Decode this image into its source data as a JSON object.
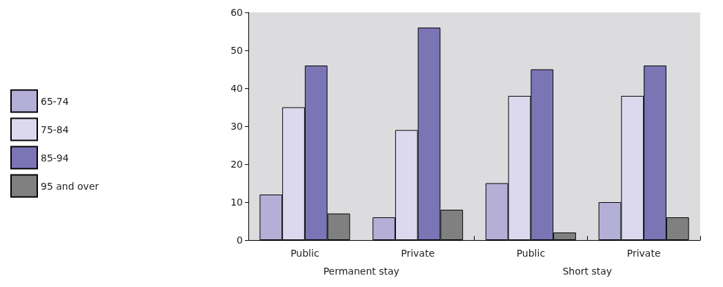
{
  "chart_data": {
    "type": "bar",
    "categories": [
      "Public",
      "Private",
      "Public",
      "Private"
    ],
    "series": [
      {
        "name": "65-74",
        "color": "#b3afd7",
        "values": [
          12,
          6,
          15,
          10
        ]
      },
      {
        "name": "75-84",
        "color": "#dcd9ee",
        "values": [
          35,
          29,
          38,
          38
        ]
      },
      {
        "name": "85-94",
        "color": "#7b74b5",
        "values": [
          46,
          56,
          45,
          46
        ]
      },
      {
        "name": "95 and over",
        "color": "#808080",
        "values": [
          7,
          8,
          2,
          6
        ]
      }
    ],
    "ylim": [
      0,
      60
    ],
    "yticks": [
      0,
      10,
      20,
      30,
      40,
      50,
      60
    ],
    "grid": false,
    "legend": "left",
    "annotations": [
      "Permanent stay",
      "Short stay"
    ]
  }
}
